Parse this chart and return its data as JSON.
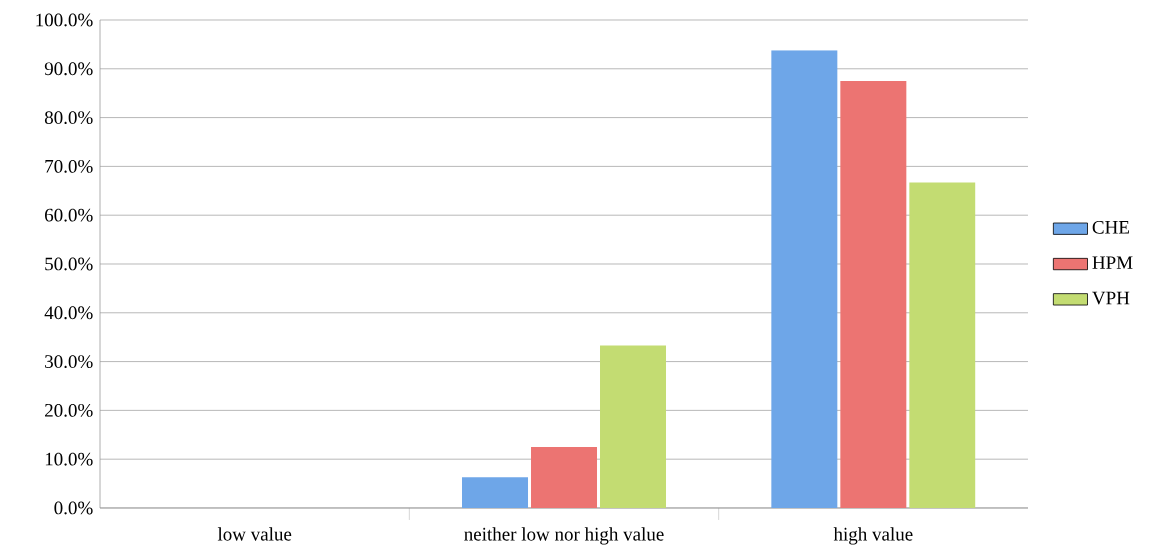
{
  "chart_data": {
    "type": "bar",
    "categories": [
      "low value",
      "neither low nor high value",
      "high value"
    ],
    "series": [
      {
        "name": "CHE",
        "color": "#6ea6e8",
        "values": [
          0,
          6.3,
          93.8
        ]
      },
      {
        "name": "HPM",
        "color": "#ec7472",
        "values": [
          0,
          12.5,
          87.5
        ]
      },
      {
        "name": "VPH",
        "color": "#c3dc72",
        "values": [
          0,
          33.3,
          66.7
        ]
      }
    ],
    "ylim": [
      0,
      100
    ],
    "yticks": [
      {
        "value": 0,
        "label": "0.0%"
      },
      {
        "value": 10,
        "label": "10.0%"
      },
      {
        "value": 20,
        "label": "20.0%"
      },
      {
        "value": 30,
        "label": "30.0%"
      },
      {
        "value": 40,
        "label": "40.0%"
      },
      {
        "value": 50,
        "label": "50.0%"
      },
      {
        "value": 60,
        "label": "60.0%"
      },
      {
        "value": 70,
        "label": "70.0%"
      },
      {
        "value": 80,
        "label": "80.0%"
      },
      {
        "value": 90,
        "label": "90.0%"
      },
      {
        "value": 100,
        "label": "100.0%"
      }
    ],
    "grid": "y",
    "legend": "right"
  }
}
